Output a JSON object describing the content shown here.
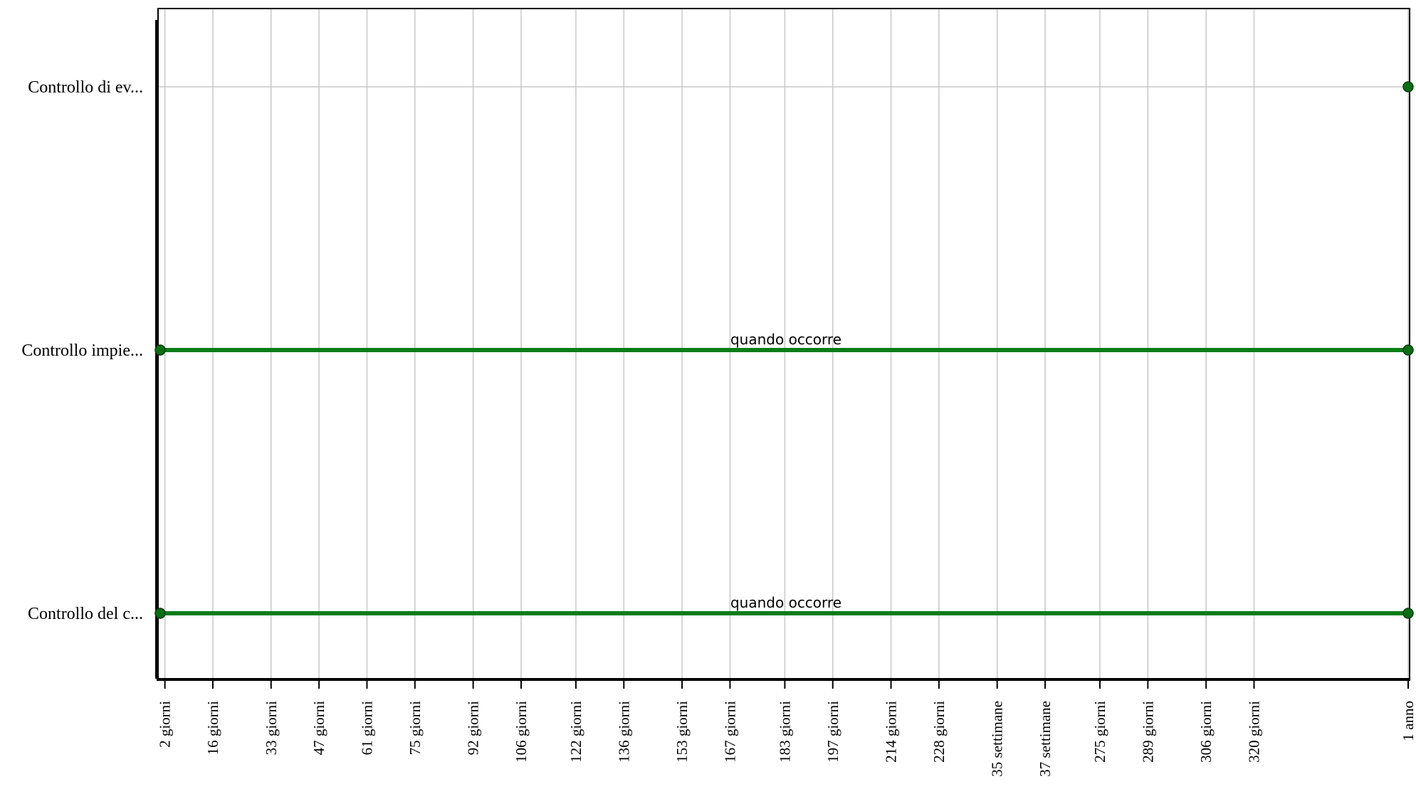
{
  "chart_data": {
    "type": "timeline",
    "grid": true,
    "colors": {
      "bar": "#0a7d18",
      "marker": "#0a6e14",
      "grid": "#c8c8c8",
      "axis": "#000000"
    },
    "rows": [
      {
        "label": "Controllo di ev...",
        "bar": null,
        "markers": [
          365
        ]
      },
      {
        "label": "Controllo impie...",
        "bar": {
          "start": 0,
          "end": 365,
          "label": "quando occorre"
        },
        "markers": [
          0,
          365
        ]
      },
      {
        "label": "Controllo del c...",
        "bar": {
          "start": 0,
          "end": 365,
          "label": "quando occorre"
        },
        "markers": [
          0,
          365
        ]
      }
    ],
    "xlim": [
      0,
      365
    ],
    "ticks": [
      {
        "day": 2,
        "label": "2 giorni"
      },
      {
        "day": 16,
        "label": "16 giorni"
      },
      {
        "day": 33,
        "label": "33 giorni"
      },
      {
        "day": 47,
        "label": "47 giorni"
      },
      {
        "day": 61,
        "label": "61 giorni"
      },
      {
        "day": 75,
        "label": "75 giorni"
      },
      {
        "day": 92,
        "label": "92 giorni"
      },
      {
        "day": 106,
        "label": "106 giorni"
      },
      {
        "day": 122,
        "label": "122 giorni"
      },
      {
        "day": 136,
        "label": "136 giorni"
      },
      {
        "day": 153,
        "label": "153 giorni"
      },
      {
        "day": 167,
        "label": "167 giorni"
      },
      {
        "day": 183,
        "label": "183 giorni"
      },
      {
        "day": 197,
        "label": "197 giorni"
      },
      {
        "day": 214,
        "label": "214 giorni"
      },
      {
        "day": 228,
        "label": "228 giorni"
      },
      {
        "day": 245,
        "label": "35 settimane"
      },
      {
        "day": 259,
        "label": "37 settimane"
      },
      {
        "day": 275,
        "label": "275 giorni"
      },
      {
        "day": 289,
        "label": "289 giorni"
      },
      {
        "day": 306,
        "label": "306 giorni"
      },
      {
        "day": 320,
        "label": "320 giorni"
      },
      {
        "day": 365,
        "label": "1 anno"
      }
    ]
  }
}
